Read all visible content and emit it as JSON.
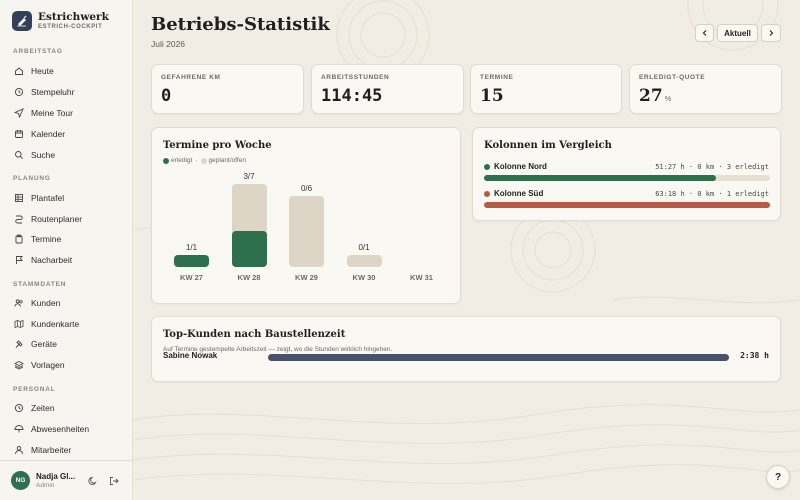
{
  "brand": {
    "title": "Estrichwerk",
    "subtitle": "ESTRICH-COCKPIT"
  },
  "sidebar": {
    "sections": [
      {
        "title": "ARBEITSTAG",
        "items": [
          {
            "label": "Heute",
            "icon": "home-icon"
          },
          {
            "label": "Stempeluhr",
            "icon": "clock-icon"
          },
          {
            "label": "Meine Tour",
            "icon": "send-icon"
          },
          {
            "label": "Kalender",
            "icon": "calendar-icon"
          },
          {
            "label": "Suche",
            "icon": "search-icon"
          }
        ]
      },
      {
        "title": "PLANUNG",
        "items": [
          {
            "label": "Plantafel",
            "icon": "grid-icon"
          },
          {
            "label": "Routenplaner",
            "icon": "route-icon"
          },
          {
            "label": "Termine",
            "icon": "clipboard-icon"
          },
          {
            "label": "Nacharbeit",
            "icon": "flag-icon"
          }
        ]
      },
      {
        "title": "STAMMDATEN",
        "items": [
          {
            "label": "Kunden",
            "icon": "users-icon"
          },
          {
            "label": "Kundenkarte",
            "icon": "map-icon"
          },
          {
            "label": "Geräte",
            "icon": "hammer-icon"
          },
          {
            "label": "Vorlagen",
            "icon": "layers-icon"
          }
        ]
      },
      {
        "title": "PERSONAL",
        "items": [
          {
            "label": "Zeiten",
            "icon": "clock-icon"
          },
          {
            "label": "Abwesenheiten",
            "icon": "umbrella-icon"
          },
          {
            "label": "Mitarbeiter",
            "icon": "user-icon"
          }
        ]
      }
    ]
  },
  "user": {
    "initials": "NG",
    "name": "Nadja Gl...",
    "role": "Admin"
  },
  "header": {
    "title": "Betriebs-Statistik",
    "subtitle": "Juli 2026",
    "prev_icon": "chevron-left-icon",
    "current_label": "Aktuell",
    "next_icon": "chevron-right-icon"
  },
  "stats": [
    {
      "label": "GEFAHRENE KM",
      "value": "0",
      "unit": ""
    },
    {
      "label": "ARBEITSSTUNDEN",
      "value": "114:45",
      "unit": ""
    },
    {
      "label": "TERMINE",
      "value": "15",
      "unit": ""
    },
    {
      "label": "ERLEDIGT-QUOTE",
      "value": "27",
      "unit": "%"
    }
  ],
  "weekly": {
    "title": "Termine pro Woche",
    "legend_done": "erledigt",
    "legend_sep": "·",
    "legend_planned": "geplant/offen"
  },
  "chart_data": {
    "type": "bar",
    "categories": [
      "KW 27",
      "KW 28",
      "KW 29",
      "KW 30",
      "KW 31"
    ],
    "series": [
      {
        "name": "erledigt",
        "values": [
          1,
          3,
          0,
          0,
          0
        ]
      },
      {
        "name": "geplant/offen",
        "values": [
          1,
          7,
          6,
          1,
          0
        ]
      }
    ],
    "labels": [
      "1/1",
      "3/7",
      "0/6",
      "0/1",
      ""
    ],
    "colors": {
      "done": "#2e6f4e",
      "planned": "#ddd6c6"
    }
  },
  "kolonnen": {
    "title": "Kolonnen im Vergleich",
    "rows": [
      {
        "name": "Kolonne Nord",
        "stats": "51:27 h · 0 km · 3 erledigt",
        "color": "#2e6f4e",
        "share": 0.81
      },
      {
        "name": "Kolonne Süd",
        "stats": "63:18 h · 0 km · 1 erledigt",
        "color": "#b65a43",
        "share": 1.0
      }
    ]
  },
  "top_kunden": {
    "title": "Top-Kunden nach Baustellenzeit",
    "subtitle": "Auf Termine gestempelte Arbeitszeit — zeigt, wo die Stunden wirklich hingehen.",
    "rows": [
      {
        "name": "Sabine Nowak",
        "value": "2:38 h",
        "share": 1.0
      }
    ]
  },
  "help_label": "?"
}
